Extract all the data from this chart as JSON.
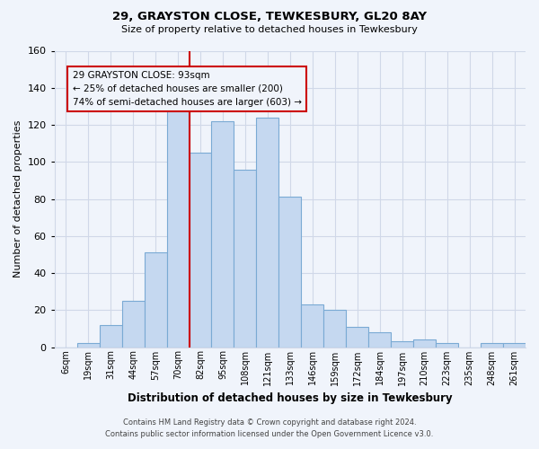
{
  "title": "29, GRAYSTON CLOSE, TEWKESBURY, GL20 8AY",
  "subtitle": "Size of property relative to detached houses in Tewkesbury",
  "xlabel": "Distribution of detached houses by size in Tewkesbury",
  "ylabel": "Number of detached properties",
  "bar_labels": [
    "6sqm",
    "19sqm",
    "31sqm",
    "44sqm",
    "57sqm",
    "70sqm",
    "82sqm",
    "95sqm",
    "108sqm",
    "121sqm",
    "133sqm",
    "146sqm",
    "159sqm",
    "172sqm",
    "184sqm",
    "197sqm",
    "210sqm",
    "223sqm",
    "235sqm",
    "248sqm",
    "261sqm"
  ],
  "bar_values": [
    0,
    2,
    12,
    25,
    51,
    131,
    105,
    122,
    96,
    124,
    81,
    23,
    20,
    11,
    8,
    3,
    4,
    2,
    0,
    2,
    2
  ],
  "bar_color": "#c5d8f0",
  "bar_edgecolor": "#7aaad4",
  "vline_color": "#cc0000",
  "vline_index": 5.5,
  "ylim": [
    0,
    160
  ],
  "yticks": [
    0,
    20,
    40,
    60,
    80,
    100,
    120,
    140,
    160
  ],
  "annotation_text": "29 GRAYSTON CLOSE: 93sqm\n← 25% of detached houses are smaller (200)\n74% of semi-detached houses are larger (603) →",
  "annotation_box_edgecolor": "#cc0000",
  "footnote1": "Contains HM Land Registry data © Crown copyright and database right 2024.",
  "footnote2": "Contains public sector information licensed under the Open Government Licence v3.0.",
  "background_color": "#f0f4fb",
  "grid_color": "#d0d8e8"
}
